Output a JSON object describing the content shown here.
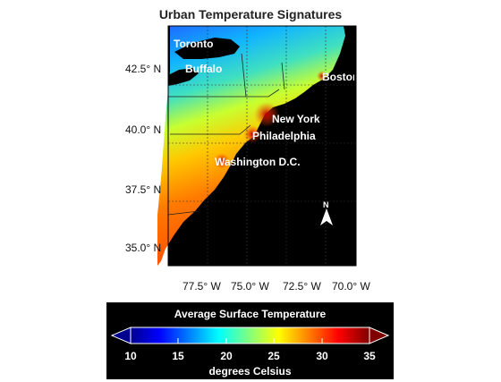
{
  "title": "Urban Temperature Signatures",
  "latitude_labels": [
    "42.5° N",
    "40.0° N",
    "37.5° N",
    "35.0° N"
  ],
  "longitude_labels": [
    "77.5° W",
    "75.0° W",
    "72.5° W",
    "70.0° W"
  ],
  "cities": [
    "Toronto",
    "Buffalo",
    "Boston",
    "New York",
    "Philadelphia",
    "Washington D.C."
  ],
  "north_arrow_label": "N",
  "colorbar": {
    "title": "Average Surface Temperature",
    "ticks": [
      "10",
      "15",
      "20",
      "25",
      "30",
      "35"
    ],
    "units": "degrees Celsius",
    "range": [
      10,
      35
    ]
  },
  "colors": {
    "ocean": "#000000",
    "cold": "#0000c8",
    "warm": "#ff6a00",
    "hot": "#b00000",
    "label": "#ffffff"
  }
}
